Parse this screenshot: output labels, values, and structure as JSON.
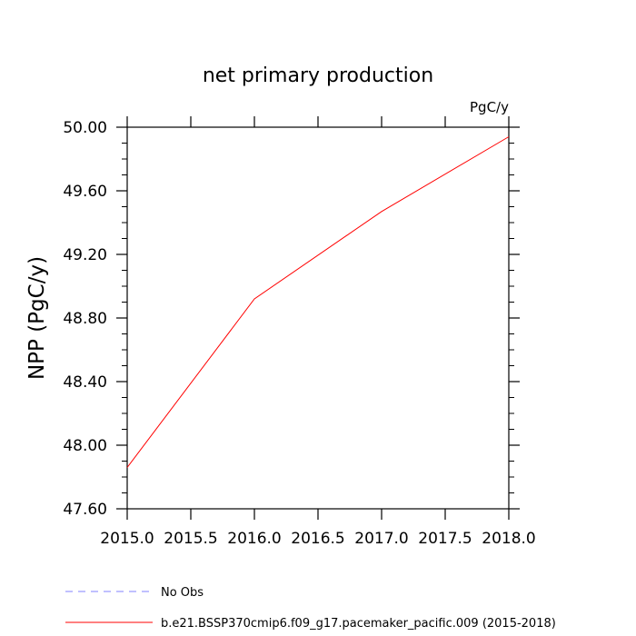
{
  "chart_data": {
    "type": "line",
    "title": "net primary production",
    "units_label": "PgC/y",
    "ylabel": "NPP  (PgC/y)",
    "xlabel": "",
    "xlim": [
      2015.0,
      2018.0
    ],
    "ylim": [
      47.6,
      50.0
    ],
    "x_ticks": [
      "2015.0",
      "2015.5",
      "2016.0",
      "2016.5",
      "2017.0",
      "2017.5",
      "2018.0"
    ],
    "x_tick_values": [
      2015.0,
      2015.5,
      2016.0,
      2016.5,
      2017.0,
      2017.5,
      2018.0
    ],
    "y_ticks": [
      "47.60",
      "48.00",
      "48.40",
      "48.80",
      "49.20",
      "49.60",
      "50.00"
    ],
    "y_tick_values": [
      47.6,
      48.0,
      48.4,
      48.8,
      49.2,
      49.6,
      50.0
    ],
    "grid": false,
    "series": [
      {
        "name": "b.e21.BSSP370cmip6.f09_g17.pacemaker_pacific.009 (2015-2018)",
        "color": "#ff0000",
        "dash": "solid",
        "x": [
          2015.0,
          2016.0,
          2017.0,
          2018.0
        ],
        "values": [
          47.86,
          48.92,
          49.47,
          49.94
        ]
      }
    ],
    "legend": [
      {
        "label": "No Obs",
        "color": "#8080ff",
        "dash": "dashed"
      },
      {
        "label": "b.e21.BSSP370cmip6.f09_g17.pacemaker_pacific.009 (2015-2018)",
        "color": "#ff0000",
        "dash": "solid"
      }
    ],
    "legend_position": "bottom"
  }
}
